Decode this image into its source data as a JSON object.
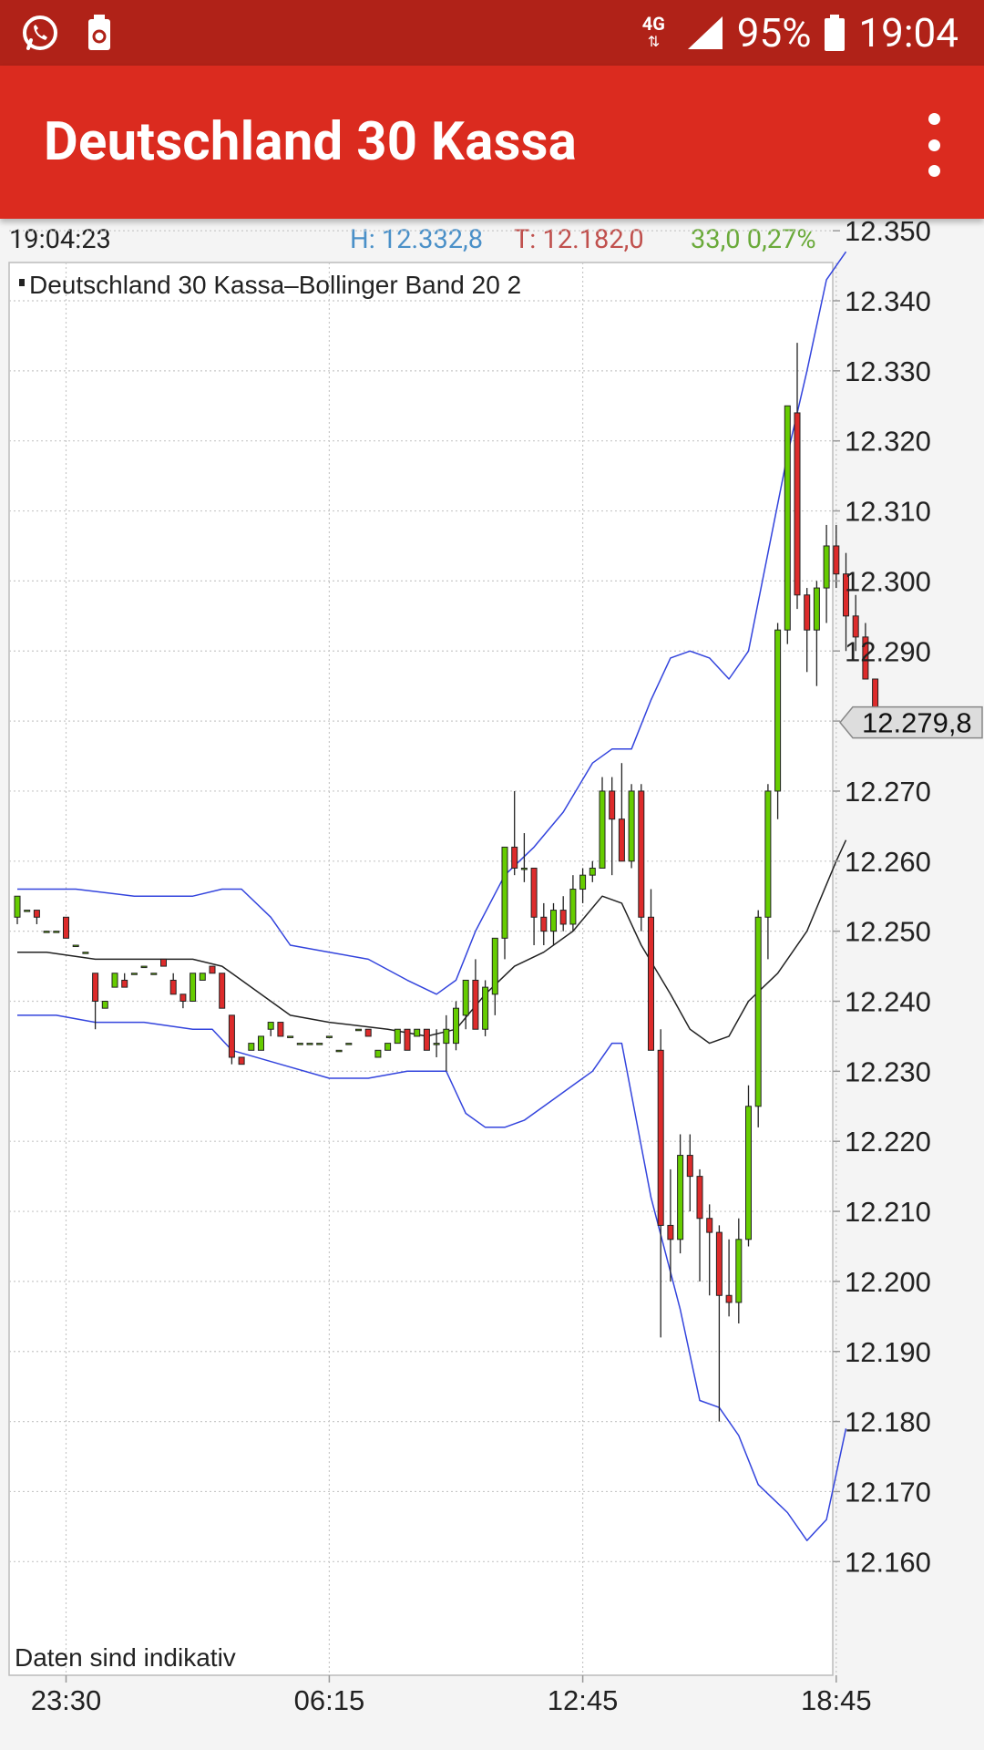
{
  "status_bar": {
    "icons_left": [
      "whatsapp-icon",
      "battery-saver-icon"
    ],
    "network": "4G",
    "battery": "95%",
    "time": "19:04"
  },
  "app_bar": {
    "title": "Deutschland 30 Kassa",
    "menu_icon": "more-vert-icon"
  },
  "info": {
    "time": "19:04:23",
    "high": "H: 12.332,8",
    "low": "T: 12.182,0",
    "change": "33,0 0,27%"
  },
  "colors": {
    "status_bar": "#b02218",
    "app_bar": "#db2b1f",
    "candle_up": "#66cc00",
    "candle_down": "#dd2b2b",
    "bollinger_band": "#3344dd",
    "bollinger_mid": "#222222"
  },
  "chart_data": {
    "type": "candlestick",
    "title": "Deutschland 30 Kassa",
    "indicator": "Bollinger Band 20 2",
    "legend": "Deutschland 30 Kassa–Bollinger Band 20 2",
    "footnote": "Daten sind indikativ",
    "current_price": "12.279,8",
    "ylim": [
      12155,
      12355
    ],
    "y_ticks": [
      "12.350",
      "12.340",
      "12.330",
      "12.320",
      "12.310",
      "12.300",
      "12.290",
      "12.280",
      "12.270",
      "12.260",
      "12.250",
      "12.240",
      "12.230",
      "12.220",
      "12.210",
      "12.200",
      "12.190",
      "12.180",
      "12.170",
      "12.160"
    ],
    "y_tick_values": [
      12350,
      12340,
      12330,
      12320,
      12310,
      12300,
      12290,
      12280,
      12270,
      12260,
      12250,
      12240,
      12230,
      12220,
      12210,
      12200,
      12190,
      12180,
      12170,
      12160
    ],
    "x_ticks": [
      {
        "label": "23:30",
        "index": 5
      },
      {
        "label": "06:15",
        "index": 32
      },
      {
        "label": "12:45",
        "index": 58
      },
      {
        "label": "18:45",
        "index": 84
      }
    ],
    "grid": true,
    "candles": [
      [
        12252,
        12255,
        12251,
        12255
      ],
      [
        12253,
        12253,
        12253,
        12253
      ],
      [
        12253,
        12253,
        12251,
        12252
      ],
      [
        12250,
        12250,
        12250,
        12250
      ],
      [
        12250,
        12250,
        12250,
        12250
      ],
      [
        12252,
        12252,
        12249,
        12249
      ],
      [
        12248,
        12248,
        12248,
        12248
      ],
      [
        12247,
        12247,
        12247,
        12247
      ],
      [
        12244,
        12244,
        12236,
        12240
      ],
      [
        12239,
        12240,
        12239,
        12240
      ],
      [
        12242,
        12244,
        12242,
        12244
      ],
      [
        12243,
        12244,
        12242,
        12242
      ],
      [
        12244,
        12244,
        12244,
        12244
      ],
      [
        12245,
        12245,
        12245,
        12245
      ],
      [
        12244,
        12244,
        12244,
        12244
      ],
      [
        12246,
        12246,
        12245,
        12245
      ],
      [
        12243,
        12244,
        12241,
        12241
      ],
      [
        12241,
        12241,
        12239,
        12240
      ],
      [
        12240,
        12244,
        12240,
        12244
      ],
      [
        12243,
        12244,
        12243,
        12244
      ],
      [
        12245,
        12245,
        12244,
        12244
      ],
      [
        12244,
        12244,
        12239,
        12239
      ],
      [
        12238,
        12238,
        12231,
        12232
      ],
      [
        12232,
        12232,
        12231,
        12231
      ],
      [
        12233,
        12234,
        12233,
        12234
      ],
      [
        12233,
        12235,
        12233,
        12235
      ],
      [
        12236,
        12237,
        12235,
        12237
      ],
      [
        12237,
        12237,
        12235,
        12235
      ],
      [
        12235,
        12235,
        12235,
        12235
      ],
      [
        12234,
        12234,
        12234,
        12234
      ],
      [
        12234,
        12234,
        12234,
        12234
      ],
      [
        12234,
        12234,
        12234,
        12234
      ],
      [
        12235,
        12235,
        12235,
        12235
      ],
      [
        12233,
        12233,
        12233,
        12233
      ],
      [
        12234,
        12234,
        12234,
        12234
      ],
      [
        12236,
        12236,
        12236,
        12236
      ],
      [
        12236,
        12236,
        12235,
        12235
      ],
      [
        12232,
        12233,
        12232,
        12233
      ],
      [
        12233,
        12234,
        12233,
        12234
      ],
      [
        12234,
        12236,
        12234,
        12236
      ],
      [
        12236,
        12236,
        12233,
        12233
      ],
      [
        12235,
        12236,
        12235,
        12236
      ],
      [
        12236,
        12236,
        12233,
        12233
      ],
      [
        12234,
        12236,
        12232,
        12234
      ],
      [
        12234,
        12238,
        12230,
        12236
      ],
      [
        12234,
        12240,
        12233,
        12239
      ],
      [
        12238,
        12243,
        12236,
        12243
      ],
      [
        12243,
        12246,
        12236,
        12236
      ],
      [
        12236,
        12243,
        12235,
        12242
      ],
      [
        12241,
        12249,
        12238,
        12249
      ],
      [
        12249,
        12262,
        12246,
        12262
      ],
      [
        12262,
        12270,
        12258,
        12259
      ],
      [
        12259,
        12264,
        12257,
        12259
      ],
      [
        12259,
        12259,
        12248,
        12252
      ],
      [
        12252,
        12254,
        12248,
        12250
      ],
      [
        12250,
        12254,
        12248,
        12253
      ],
      [
        12253,
        12255,
        12250,
        12251
      ],
      [
        12251,
        12258,
        12250,
        12256
      ],
      [
        12256,
        12259,
        12254,
        12258
      ],
      [
        12258,
        12260,
        12257,
        12259
      ],
      [
        12259,
        12272,
        12259,
        12270
      ],
      [
        12270,
        12272,
        12258,
        12266
      ],
      [
        12266,
        12274,
        12260,
        12260
      ],
      [
        12260,
        12271,
        12259,
        12270
      ],
      [
        12270,
        12271,
        12250,
        12252
      ],
      [
        12252,
        12256,
        12234,
        12233
      ],
      [
        12233,
        12236,
        12192,
        12208
      ],
      [
        12208,
        12216,
        12200,
        12206
      ],
      [
        12206,
        12221,
        12204,
        12218
      ],
      [
        12218,
        12221,
        12210,
        12215
      ],
      [
        12215,
        12216,
        12200,
        12209
      ],
      [
        12209,
        12211,
        12198,
        12207
      ],
      [
        12207,
        12208,
        12180,
        12198
      ],
      [
        12198,
        12206,
        12195,
        12197
      ],
      [
        12197,
        12209,
        12194,
        12206
      ],
      [
        12206,
        12228,
        12205,
        12225
      ],
      [
        12225,
        12253,
        12222,
        12252
      ],
      [
        12252,
        12271,
        12246,
        12270
      ],
      [
        12270,
        12294,
        12266,
        12293
      ],
      [
        12293,
        12325,
        12291,
        12325
      ],
      [
        12324,
        12334,
        12296,
        12298
      ],
      [
        12298,
        12299,
        12287,
        12293
      ],
      [
        12293,
        12300,
        12285,
        12299
      ],
      [
        12299,
        12308,
        12294,
        12305
      ],
      [
        12305,
        12308,
        12299,
        12301
      ],
      [
        12301,
        12304,
        12290,
        12295
      ],
      [
        12295,
        12298,
        12290,
        12292
      ],
      [
        12292,
        12294,
        12286,
        12286
      ],
      [
        12286,
        12286,
        12279,
        12280
      ]
    ],
    "bollinger_upper": [
      [
        0,
        12256
      ],
      [
        2,
        12256
      ],
      [
        6,
        12256
      ],
      [
        12,
        12255
      ],
      [
        18,
        12255
      ],
      [
        21,
        12256
      ],
      [
        23,
        12256
      ],
      [
        26,
        12252
      ],
      [
        28,
        12248
      ],
      [
        32,
        12247
      ],
      [
        36,
        12246
      ],
      [
        40,
        12243
      ],
      [
        43,
        12241
      ],
      [
        45,
        12243
      ],
      [
        47,
        12250
      ],
      [
        50,
        12258
      ],
      [
        53,
        12262
      ],
      [
        56,
        12267
      ],
      [
        59,
        12274
      ],
      [
        61,
        12276
      ],
      [
        63,
        12276
      ],
      [
        65,
        12283
      ],
      [
        67,
        12289
      ],
      [
        69,
        12290
      ],
      [
        71,
        12289
      ],
      [
        73,
        12286
      ],
      [
        75,
        12290
      ],
      [
        77,
        12304
      ],
      [
        79,
        12318
      ],
      [
        81,
        12330
      ],
      [
        83,
        12343
      ],
      [
        85,
        12347
      ]
    ],
    "bollinger_middle": [
      [
        0,
        12247
      ],
      [
        3,
        12247
      ],
      [
        8,
        12246
      ],
      [
        13,
        12246
      ],
      [
        18,
        12246
      ],
      [
        21,
        12245
      ],
      [
        24,
        12242
      ],
      [
        28,
        12238
      ],
      [
        32,
        12237
      ],
      [
        38,
        12236
      ],
      [
        42,
        12235
      ],
      [
        45,
        12236
      ],
      [
        48,
        12241
      ],
      [
        51,
        12245
      ],
      [
        54,
        12247
      ],
      [
        57,
        12250
      ],
      [
        60,
        12255
      ],
      [
        62,
        12254
      ],
      [
        64,
        12248
      ],
      [
        67,
        12241
      ],
      [
        69,
        12236
      ],
      [
        71,
        12234
      ],
      [
        73,
        12235
      ],
      [
        75,
        12240
      ],
      [
        78,
        12244
      ],
      [
        81,
        12250
      ],
      [
        84,
        12260
      ],
      [
        85,
        12263
      ]
    ],
    "bollinger_lower": [
      [
        0,
        12238
      ],
      [
        4,
        12238
      ],
      [
        8,
        12237
      ],
      [
        13,
        12237
      ],
      [
        18,
        12236
      ],
      [
        20,
        12236
      ],
      [
        22,
        12233
      ],
      [
        27,
        12231
      ],
      [
        32,
        12229
      ],
      [
        36,
        12229
      ],
      [
        40,
        12230
      ],
      [
        44,
        12230
      ],
      [
        46,
        12224
      ],
      [
        48,
        12222
      ],
      [
        50,
        12222
      ],
      [
        52,
        12223
      ],
      [
        55,
        12226
      ],
      [
        59,
        12230
      ],
      [
        61,
        12234
      ],
      [
        62,
        12234
      ],
      [
        65,
        12212
      ],
      [
        68,
        12196
      ],
      [
        70,
        12183
      ],
      [
        72,
        12182
      ],
      [
        74,
        12178
      ],
      [
        76,
        12171
      ],
      [
        79,
        12167
      ],
      [
        81,
        12163
      ],
      [
        83,
        12166
      ],
      [
        85,
        12179
      ]
    ]
  }
}
